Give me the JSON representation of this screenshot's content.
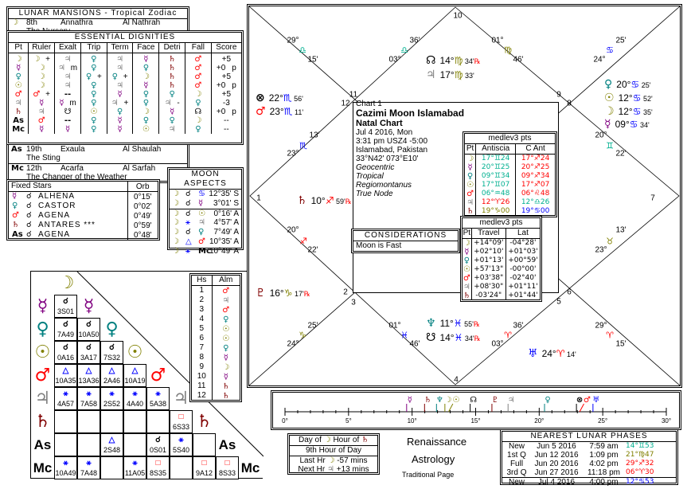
{
  "planets": {
    "moon": {
      "g": "☽",
      "c": "#808000"
    },
    "mercury": {
      "g": "☿",
      "c": "#800080"
    },
    "venus": {
      "g": "♀",
      "c": "#008080"
    },
    "sun": {
      "g": "☉",
      "c": "#808000"
    },
    "mars": {
      "g": "♂",
      "c": "#ff0000"
    },
    "jupiter": {
      "g": "♃",
      "c": "#808080"
    },
    "saturn": {
      "g": "♄",
      "c": "#800000"
    },
    "as": {
      "g": "As",
      "c": "#000000"
    },
    "mc": {
      "g": "Mc",
      "c": "#000000"
    },
    "node": {
      "g": "☊",
      "c": "#000000"
    },
    "snode": {
      "g": "☋",
      "c": "#000000"
    },
    "neptune": {
      "g": "♆",
      "c": "#008080"
    },
    "uranus": {
      "g": "♅",
      "c": "#0000ff"
    },
    "pluto": {
      "g": "♇",
      "c": "#800000"
    },
    "fortune": {
      "g": "⊗",
      "c": "#000000"
    },
    "none": {
      "g": "--",
      "c": "#000000"
    }
  },
  "aspect_colors": {
    "conj": "#000000",
    "trine": "#0000ff",
    "sext": "#0000ff",
    "square": "#ff0000"
  },
  "aspect_glyphs": {
    "conj": "☌",
    "trine": "△",
    "sext": "⚹",
    "square": "□"
  },
  "lunar_mansions": {
    "title": "LUNAR MANSIONS - Tropical Zodiac",
    "rows": [
      {
        "pt": "moon",
        "num": "8th",
        "name": "Annathra",
        "arabic": "Al Nathrah",
        "meaning": "The Nursery"
      },
      {
        "pt": "as",
        "num": "19th",
        "name": "Exaula",
        "arabic": "Al Shaulah",
        "meaning": "The Sting"
      },
      {
        "pt": "mc",
        "num": "12th",
        "name": "Acarfa",
        "arabic": "Al Sarfah",
        "meaning": "The Changer of the Weather"
      }
    ]
  },
  "dignities": {
    "title": "ESSENTIAL DIGNITIES",
    "columns": [
      "Pt",
      "Ruler",
      "Exalt",
      "Trip",
      "Term",
      "Face",
      "Detri",
      "Fall",
      "Score"
    ],
    "rows": [
      {
        "pt": "moon",
        "cells": [
          [
            "moon",
            "+"
          ],
          [
            "jupiter",
            ""
          ],
          [
            "venus",
            ""
          ],
          [
            "jupiter",
            ""
          ],
          [
            "mercury",
            ""
          ],
          [
            "saturn",
            ""
          ],
          [
            "mars",
            ""
          ]
        ],
        "score": "+5",
        "flag": ""
      },
      {
        "pt": "mercury",
        "cells": [
          [
            "moon",
            ""
          ],
          [
            "jupiter",
            "m"
          ],
          [
            "venus",
            ""
          ],
          [
            "jupiter",
            ""
          ],
          [
            "venus",
            ""
          ],
          [
            "saturn",
            ""
          ],
          [
            "mars",
            ""
          ]
        ],
        "score": "+0",
        "flag": "p"
      },
      {
        "pt": "venus",
        "cells": [
          [
            "moon",
            ""
          ],
          [
            "jupiter",
            ""
          ],
          [
            "venus",
            "+"
          ],
          [
            "venus",
            "+"
          ],
          [
            "moon",
            ""
          ],
          [
            "saturn",
            ""
          ],
          [
            "mars",
            ""
          ]
        ],
        "score": "+5",
        "flag": ""
      },
      {
        "pt": "sun",
        "cells": [
          [
            "moon",
            ""
          ],
          [
            "jupiter",
            ""
          ],
          [
            "venus",
            ""
          ],
          [
            "jupiter",
            ""
          ],
          [
            "mercury",
            ""
          ],
          [
            "saturn",
            ""
          ],
          [
            "mars",
            ""
          ]
        ],
        "score": "+0",
        "flag": "p"
      },
      {
        "pt": "mars",
        "cells": [
          [
            "mars",
            "+"
          ],
          [
            "none",
            ""
          ],
          [
            "venus",
            ""
          ],
          [
            "mercury",
            ""
          ],
          [
            "venus",
            ""
          ],
          [
            "venus",
            ""
          ],
          [
            "moon",
            ""
          ]
        ],
        "score": "+5",
        "flag": ""
      },
      {
        "pt": "jupiter",
        "cells": [
          [
            "mercury",
            ""
          ],
          [
            "mercury",
            "m"
          ],
          [
            "venus",
            ""
          ],
          [
            "jupiter",
            "+"
          ],
          [
            "venus",
            ""
          ],
          [
            "jupiter",
            "-"
          ],
          [
            "venus",
            ""
          ]
        ],
        "score": "-3",
        "flag": ""
      },
      {
        "pt": "saturn",
        "cells": [
          [
            "jupiter",
            ""
          ],
          [
            "snode",
            ""
          ],
          [
            "sun",
            ""
          ],
          [
            "venus",
            ""
          ],
          [
            "moon",
            ""
          ],
          [
            "mercury",
            ""
          ],
          [
            "node",
            ""
          ]
        ],
        "score": "+0",
        "flag": "p"
      },
      {
        "pt": "as",
        "cells": [
          [
            "mars",
            ""
          ],
          [
            "none",
            ""
          ],
          [
            "venus",
            ""
          ],
          [
            "mercury",
            ""
          ],
          [
            "venus",
            ""
          ],
          [
            "venus",
            ""
          ],
          [
            "moon",
            ""
          ]
        ],
        "score": "--",
        "flag": ""
      },
      {
        "pt": "mc",
        "cells": [
          [
            "mercury",
            ""
          ],
          [
            "mercury",
            ""
          ],
          [
            "venus",
            ""
          ],
          [
            "mercury",
            ""
          ],
          [
            "sun",
            ""
          ],
          [
            "jupiter",
            ""
          ],
          [
            "venus",
            ""
          ]
        ],
        "score": "--",
        "flag": ""
      }
    ]
  },
  "fixed_stars": {
    "title": "Fixed Stars",
    "orb_label": "Orb",
    "rows": [
      {
        "pt": "mercury",
        "asp": "☌",
        "star": "ALHENA",
        "orb": "0°15'"
      },
      {
        "pt": "venus",
        "asp": "☌",
        "star": "CASTOR",
        "orb": "0°02'"
      },
      {
        "pt": "mars",
        "asp": "☌",
        "star": "AGENA",
        "orb": "0°49'"
      },
      {
        "pt": "saturn",
        "asp": "☌",
        "star": "ANTARES ***",
        "orb": "0°59'"
      },
      {
        "pt": "as",
        "asp": "☌",
        "star": "AGENA",
        "orb": "0°48'"
      }
    ]
  },
  "moon_aspects": {
    "title": "MOON ASPECTS",
    "rows": [
      {
        "asp": "conj",
        "to": "♋",
        "to_color": "#0000ff",
        "orb": "12°35' S"
      },
      {
        "asp": "conj",
        "to": "mercury",
        "orb": "3°01' S"
      },
      {
        "asp": "conj",
        "to": "sun",
        "orb": "0°16' A"
      },
      {
        "asp": "sext",
        "to": "jupiter",
        "orb": "4°57' A"
      },
      {
        "asp": "conj",
        "to": "venus",
        "orb": "7°49' A"
      },
      {
        "asp": "trine",
        "to": "mars",
        "orb": "10°35' A"
      },
      {
        "asp": "sext",
        "to": "mc",
        "orb": "10°49' A"
      }
    ]
  },
  "aspect_grid": {
    "planets": [
      "moon",
      "mercury",
      "venus",
      "sun",
      "mars",
      "jupiter",
      "saturn",
      "as",
      "mc"
    ],
    "rows": [
      [
        [
          "conj",
          "3S01"
        ]
      ],
      [
        [
          "conj",
          "7A49"
        ],
        [
          "conj",
          "10A50"
        ]
      ],
      [
        [
          "conj",
          "0A16"
        ],
        [
          "conj",
          "3A17"
        ],
        [
          "conj",
          "7S32"
        ]
      ],
      [
        [
          "trine",
          "10A35"
        ],
        [
          "trine",
          "13A36"
        ],
        [
          "trine",
          "2A46"
        ],
        [
          "trine",
          "10A19"
        ]
      ],
      [
        [
          "sext",
          "4A57"
        ],
        [
          "sext",
          "7A58"
        ],
        [
          "sext",
          "2S52"
        ],
        [
          "sext",
          "4A40"
        ],
        [
          "sext",
          "5A38"
        ]
      ],
      [
        [],
        [],
        [],
        [],
        [],
        [
          "square",
          "6S33"
        ]
      ],
      [
        [],
        [],
        [
          "trine",
          "2S48"
        ],
        [],
        [
          "conj",
          "0S01"
        ],
        [
          "sext",
          "5S40"
        ],
        []
      ],
      [
        [
          "sext",
          "10A49"
        ],
        [
          "sext",
          "7A48"
        ],
        [],
        [
          "sext",
          "11A05"
        ],
        [
          "square",
          "8S35"
        ],
        [],
        [
          "square",
          "9A12"
        ],
        [
          "square",
          "8S33"
        ]
      ]
    ]
  },
  "almutens": {
    "columns": [
      "Hs",
      "Alm"
    ],
    "rows": [
      [
        "1",
        "mars"
      ],
      [
        "2",
        "jupiter"
      ],
      [
        "3",
        "mars"
      ],
      [
        "4",
        "venus"
      ],
      [
        "5",
        "sun"
      ],
      [
        "6",
        "sun"
      ],
      [
        "7",
        "venus"
      ],
      [
        "8",
        "mercury"
      ],
      [
        "9",
        "moon"
      ],
      [
        "10",
        "mercury"
      ],
      [
        "11",
        "saturn"
      ],
      [
        "12",
        "saturn"
      ]
    ]
  },
  "chart": {
    "house_numbers": [
      "10",
      "11",
      "12",
      "9",
      "8",
      "1",
      "7",
      "2",
      "3",
      "5",
      "6",
      "4"
    ],
    "cusps": [
      {
        "deg": "29°",
        "sign": "♎",
        "min": "15'",
        "color": "#00b090"
      },
      {
        "deg": "03°",
        "sign": "♎",
        "min": "36'",
        "color": "#00b090"
      },
      {
        "deg": "01°",
        "sign": "♍",
        "min": "46'",
        "color": "#808000"
      },
      {
        "deg": "24°",
        "sign": "♋",
        "min": "25'",
        "color": "#0000ff"
      },
      {
        "deg": "23°",
        "sign": "♏",
        "min": "13'",
        "color": "#0000ff"
      },
      {
        "deg": "20°",
        "sign": "♊",
        "min": "22'",
        "color": "#00b090"
      },
      {
        "deg": "20°",
        "sign": "♐",
        "min": "22'",
        "color": "#ff0000"
      },
      {
        "deg": "23°",
        "sign": "♉",
        "min": "13'",
        "color": "#808000"
      },
      {
        "deg": "24°",
        "sign": "♑",
        "min": "25'",
        "color": "#808000"
      },
      {
        "deg": "01°",
        "sign": "♓",
        "min": "46'",
        "color": "#0000ff"
      },
      {
        "deg": "03°",
        "sign": "♈",
        "min": "36'",
        "color": "#ff0000"
      },
      {
        "deg": "29°",
        "sign": "♈",
        "min": "15'",
        "color": "#ff0000"
      }
    ],
    "positions": [
      {
        "pt": "node",
        "deg": "14°",
        "sign": "♍",
        "sc": "#808000",
        "min": "34'",
        "retro": "℞"
      },
      {
        "pt": "jupiter",
        "deg": "17°",
        "sign": "♍",
        "sc": "#808000",
        "min": "33'",
        "retro": ""
      },
      {
        "pt": "fortune",
        "deg": "22°",
        "sign": "♏",
        "sc": "#0000ff",
        "min": "56'",
        "retro": ""
      },
      {
        "pt": "mars",
        "deg": "23°",
        "sign": "♏",
        "sc": "#0000ff",
        "min": "11'",
        "retro": ""
      },
      {
        "pt": "venus",
        "deg": "20°",
        "sign": "♋",
        "sc": "#0000ff",
        "min": "25'",
        "retro": ""
      },
      {
        "pt": "sun",
        "deg": "12°",
        "sign": "♋",
        "sc": "#0000ff",
        "min": "52'",
        "retro": ""
      },
      {
        "pt": "moon",
        "deg": "12°",
        "sign": "♋",
        "sc": "#0000ff",
        "min": "35'",
        "retro": ""
      },
      {
        "pt": "mercury",
        "deg": "09°",
        "sign": "♋",
        "sc": "#0000ff",
        "min": "34'",
        "retro": ""
      },
      {
        "pt": "saturn",
        "deg": "10°",
        "sign": "♐",
        "sc": "#ff0000",
        "min": "59'",
        "retro": "℞"
      },
      {
        "pt": "pluto",
        "deg": "16°",
        "sign": "♑",
        "sc": "#808000",
        "min": "17'",
        "retro": "℞"
      },
      {
        "pt": "neptune",
        "deg": "11°",
        "sign": "♓",
        "sc": "#0000ff",
        "min": "55'",
        "retro": "℞"
      },
      {
        "pt": "snode",
        "deg": "14°",
        "sign": "♓",
        "sc": "#0000ff",
        "min": "34'",
        "retro": "℞"
      },
      {
        "pt": "uranus",
        "deg": "24°",
        "sign": "♈",
        "sc": "#ff0000",
        "min": "14'",
        "retro": ""
      }
    ],
    "info": {
      "chart_no": "Chart 1",
      "name": "Cazimi Moon Islamabad",
      "type": "Natal Chart",
      "date": "Jul 4 2016, Mon",
      "time": "3:31 pm  USZ4 -5:00",
      "place": "Islamabad, Pakistan",
      "coords": "33°N42' 073°E10'",
      "opts": [
        "Geocentric",
        "Tropical",
        "Regiomontanus",
        "True Node"
      ]
    },
    "considerations": {
      "title": "CONSIDERATIONS",
      "items": [
        "Moon is Fast"
      ]
    }
  },
  "antiscia": {
    "title": "medlev3 pts",
    "columns": [
      "Pt",
      "Antiscia",
      "C Ant"
    ],
    "rows": [
      {
        "pt": "moon",
        "a": "17°♊24",
        "ac": "#00b090",
        "c": "17°♐24",
        "cc": "#ff0000"
      },
      {
        "pt": "mercury",
        "a": "20°♊25",
        "ac": "#00b090",
        "c": "20°♐25",
        "cc": "#ff0000"
      },
      {
        "pt": "venus",
        "a": "09°♊34",
        "ac": "#00b090",
        "c": "09°♐34",
        "cc": "#ff0000"
      },
      {
        "pt": "sun",
        "a": "17°♊07",
        "ac": "#00b090",
        "c": "17°♐07",
        "cc": "#ff0000"
      },
      {
        "pt": "mars",
        "a": "06°♒48",
        "ac": "#00b090",
        "c": "06°♌48",
        "cc": "#ff0000"
      },
      {
        "pt": "jupiter",
        "a": "12°♈26",
        "ac": "#ff0000",
        "c": "12°♎26",
        "cc": "#00b090"
      },
      {
        "pt": "saturn",
        "a": "19°♑00",
        "ac": "#808000",
        "c": "19°♋00",
        "cc": "#0000ff"
      }
    ]
  },
  "travel": {
    "title": "medlev3 pts",
    "columns": [
      "Pt",
      "Travel",
      "Lat"
    ],
    "rows": [
      {
        "pt": "moon",
        "t": "+14°09'",
        "l": "-04°28'"
      },
      {
        "pt": "mercury",
        "t": "+02°10'",
        "l": "+01°03'"
      },
      {
        "pt": "venus",
        "t": "+01°13'",
        "l": "+00°59'"
      },
      {
        "pt": "sun",
        "t": "+57'13\"",
        "l": "-00°00'"
      },
      {
        "pt": "mars",
        "t": "+03'38\"",
        "l": "-02°40'"
      },
      {
        "pt": "jupiter",
        "t": "+08'30\"",
        "l": "+01°11'"
      },
      {
        "pt": "saturn",
        "t": "-03'24\"",
        "l": "+01°44'"
      }
    ]
  },
  "timeline": {
    "ticks": [
      "0°",
      "5°",
      "10°",
      "15°",
      "20°",
      "25°",
      "30°"
    ],
    "markers": [
      {
        "pt": "mercury",
        "deg": 9.57
      },
      {
        "pt": "saturn",
        "deg": 10.98
      },
      {
        "pt": "neptune",
        "deg": 11.92
      },
      {
        "pt": "moon",
        "deg": 12.58
      },
      {
        "pt": "sun",
        "deg": 12.87
      },
      {
        "pt": "node",
        "deg": 14.57
      },
      {
        "pt": "pluto",
        "deg": 16.28
      },
      {
        "pt": "jupiter",
        "deg": 17.55
      },
      {
        "pt": "venus",
        "deg": 20.42
      },
      {
        "pt": "fortune",
        "deg": 22.93
      },
      {
        "pt": "mars",
        "deg": 23.18
      },
      {
        "pt": "uranus",
        "deg": 24.23
      }
    ]
  },
  "hours": {
    "day_of": "Day of",
    "day_pt": "moon",
    "hour_of": "Hour of",
    "hour_pt": "saturn",
    "hour_desc": "9th Hour of Day",
    "last_label": "Last Hr",
    "last_pt": "moon",
    "last_val": "-57 mins",
    "next_label": "Next Hr",
    "next_pt": "jupiter",
    "next_val": "+13 mins"
  },
  "branding": {
    "line1": "Renaissance",
    "line2": "Astrology",
    "line3": "Traditional Page"
  },
  "lunar_phases": {
    "title": "NEAREST LUNAR PHASES",
    "rows": [
      {
        "phase": "New",
        "date": "Jun 5 2016",
        "time": "7:59 am",
        "pos": "14°♊53",
        "color": "#00b090"
      },
      {
        "phase": "1st Q",
        "date": "Jun 12 2016",
        "time": "1:09 pm",
        "pos": "21°♍47",
        "color": "#808000"
      },
      {
        "phase": "Full",
        "date": "Jun 20 2016",
        "time": "4:02 pm",
        "pos": "29°♐32",
        "color": "#ff0000"
      },
      {
        "phase": "3rd Q",
        "date": "Jun 27 2016",
        "time": "11:18 pm",
        "pos": "06°♈30",
        "color": "#ff0000"
      },
      {
        "phase": "New",
        "date": "Jul 4 2016",
        "time": "4:00 pm",
        "pos": "12°♋53",
        "color": "#0000ff"
      }
    ]
  }
}
